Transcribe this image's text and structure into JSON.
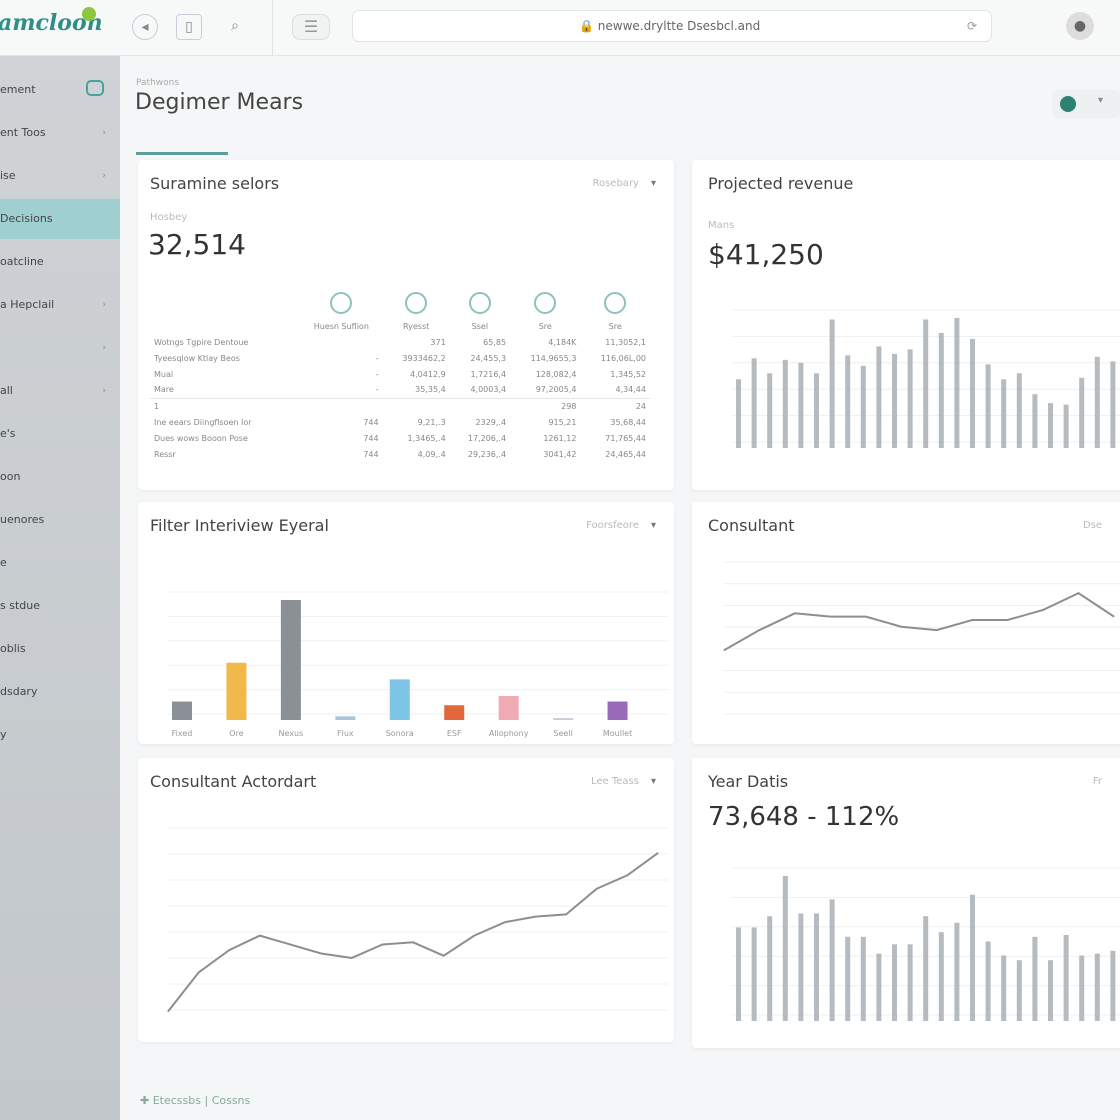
{
  "app": {
    "logo": "amcloon",
    "url": "newwe.dryltte Dsesbcl.and"
  },
  "sidebar": {
    "items": [
      {
        "label": "ement"
      },
      {
        "label": "ent Toos",
        "chev": "›"
      },
      {
        "label": "ise",
        "chev": "›"
      },
      {
        "label": "Decisions"
      },
      {
        "label": "oatcline"
      },
      {
        "label": "a Hepclail",
        "chev": "›"
      },
      {
        "label": "",
        "chev": "›"
      },
      {
        "label": "all",
        "chev": "›"
      },
      {
        "label": "e's"
      },
      {
        "label": "oon"
      },
      {
        "label": "uenores"
      },
      {
        "label": "e"
      },
      {
        "label": "s stdue"
      },
      {
        "label": "oblis"
      },
      {
        "label": "dsdary"
      },
      {
        "label": "y"
      }
    ]
  },
  "header": {
    "breadcrumb": "Pathwons",
    "title": "Degimer Mears"
  },
  "cards": {
    "summary": {
      "title": "Suramine selors",
      "dropdown": "Rosebary",
      "sublabel": "Hosbey",
      "value": "32,514",
      "columns": [
        "Huesn Suflion",
        "Ryesst",
        "Ssel",
        "Sre",
        "Sre"
      ],
      "rows": [
        [
          "Wotngs Tgpire Dentoue",
          "",
          "371",
          "65,85",
          "4,184K",
          "11,3052,1"
        ],
        [
          "Tyeesqlow Ktlay Beos",
          "-",
          "3933462,2",
          "24,455,3",
          "114,9655,3",
          "116,06L,00"
        ],
        [
          "Mual",
          "-",
          "4,0412,9",
          "1,7216,4",
          "128,082,4",
          "1,345,52"
        ],
        [
          "Mare",
          "-",
          "35,35,4",
          "4,0003,4",
          "97,2005,4",
          "4,34,44"
        ],
        [
          "1",
          "",
          "",
          "",
          "298",
          "24"
        ],
        [
          "Ine eears Diingflsoen Ior",
          "744",
          "9,21,.3",
          "2329,.4",
          "915,21",
          "35,68,44"
        ],
        [
          "Dues wows Booon Pose",
          "744",
          "1,3465,.4",
          "17,206,.4",
          "1261,12",
          "71,765,44"
        ],
        [
          "Ressr",
          "744",
          "4,09,.4",
          "29,236,.4",
          "3041,42",
          "24,465,44"
        ]
      ]
    },
    "revenue": {
      "title": "Projected revenue",
      "sublabel": "Mans",
      "value": "$41,250"
    },
    "filter": {
      "title": "Filter Interiview Eyeral",
      "dropdown": "Foorsfeore"
    },
    "consultant": {
      "title": "Consultant",
      "dropdown": "Dse"
    },
    "consultant_act": {
      "title": "Consultant Actordart",
      "dropdown": "Lee Teass"
    },
    "year": {
      "title": "Year Datis",
      "value": "73,648 - 112%",
      "dropdown": "Fr"
    }
  },
  "footer": {
    "left": "Etecssbs",
    "right": "Cossns"
  },
  "colors": {
    "accent": "#5d9e9a",
    "sidebar_active": "#9fcfd0"
  },
  "chart_data": [
    {
      "type": "bar",
      "id": "revenue",
      "values": [
        46,
        60,
        50,
        59,
        57,
        50,
        86,
        62,
        55,
        68,
        63,
        66,
        86,
        77,
        87,
        73,
        56,
        46,
        50,
        36,
        30,
        29,
        47,
        61,
        58
      ],
      "color": "#a9afb5"
    },
    {
      "type": "bar",
      "id": "filter",
      "categories": [
        "Fixed",
        "Ore",
        "Nexus",
        "Flux",
        "Sonora",
        "ESF",
        "Allophony",
        "Seell",
        "Moullet"
      ],
      "values": [
        10,
        31,
        65,
        2,
        22,
        8,
        13,
        1,
        10
      ],
      "colors": [
        "#8a9096",
        "#f1b94a",
        "#8a9096",
        "#aac4dc",
        "#7cc4e8",
        "#e3673b",
        "#efaab2",
        "#c8ccd6",
        "#9a6bb8"
      ]
    },
    {
      "type": "line",
      "id": "consultant",
      "values": [
        52,
        58,
        63,
        62,
        62,
        59,
        58,
        61,
        61,
        64,
        69,
        62
      ]
    },
    {
      "type": "line",
      "id": "consultant_act",
      "values": [
        10,
        45,
        65,
        78,
        70,
        62,
        58,
        70,
        72,
        60,
        78,
        90,
        95,
        97,
        120,
        132,
        152
      ]
    },
    {
      "type": "bar",
      "id": "year",
      "values": [
        100,
        100,
        112,
        155,
        115,
        115,
        130,
        90,
        90,
        72,
        82,
        82,
        112,
        95,
        105,
        135,
        85,
        70,
        65,
        90,
        65,
        92,
        70,
        72,
        75
      ],
      "color": "#a9afb5"
    }
  ]
}
